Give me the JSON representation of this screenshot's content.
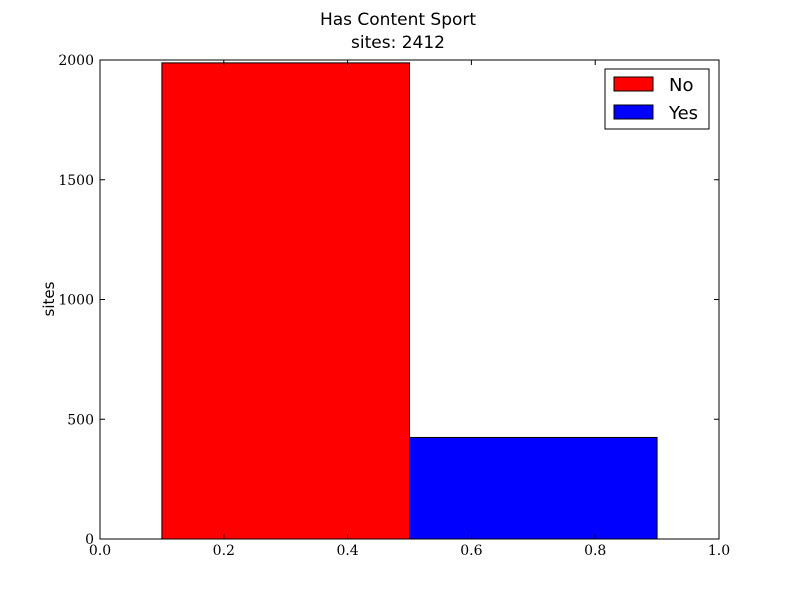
{
  "chart_data": {
    "type": "bar",
    "title": "Has Content Sport",
    "subtitle": "sites: 2412",
    "xlabel": "",
    "ylabel": "sites",
    "xlim": [
      0.0,
      1.0
    ],
    "ylim": [
      0,
      2000
    ],
    "x_ticks": [
      0.0,
      0.2,
      0.4,
      0.6,
      0.8,
      1.0
    ],
    "x_tick_labels": [
      "0.0",
      "0.2",
      "0.4",
      "0.6",
      "0.8",
      "1.0"
    ],
    "y_ticks": [
      0,
      500,
      1000,
      1500,
      2000
    ],
    "y_tick_labels": [
      "0",
      "500",
      "1000",
      "1500",
      "2000"
    ],
    "series": [
      {
        "name": "No",
        "x_start": 0.1,
        "x_end": 0.5,
        "value": 1988,
        "color": "#ff0000"
      },
      {
        "name": "Yes",
        "x_start": 0.5,
        "x_end": 0.9,
        "value": 424,
        "color": "#0000ff"
      }
    ],
    "legend_position": "top-right",
    "grid": false
  }
}
